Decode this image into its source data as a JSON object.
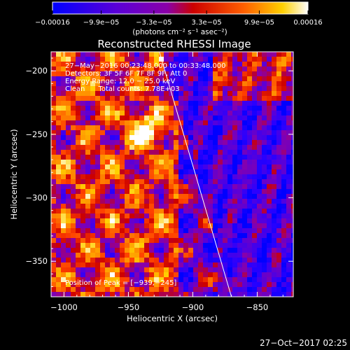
{
  "chart_data": {
    "type": "heatmap",
    "title": "Reconstructed RHESSI Image",
    "xlabel": "Heliocentric X (arcsec)",
    "ylabel": "Heliocentric Y (arcsec)",
    "xlim": [
      -1010,
      -822
    ],
    "ylim": [
      -378,
      -185
    ],
    "x_ticks": [
      -1000,
      -950,
      -900,
      -850
    ],
    "y_ticks": [
      -200,
      -250,
      -300,
      -350
    ],
    "x_tick_labels": [
      "−1000",
      "−950",
      "−900",
      "−850"
    ],
    "y_tick_labels": [
      "−200",
      "−250",
      "−300",
      "−350"
    ],
    "colorbar": {
      "range": [
        -0.00016,
        0.00016
      ],
      "ticks": [
        -0.00016,
        -9.9e-05,
        -3.3e-05,
        3.3e-05,
        9.9e-05,
        0.00016
      ],
      "tick_labels": [
        "−0.00016",
        "−9.9e−05",
        "−3.3e−05",
        "3.3e−05",
        "9.9e−05",
        "0.00016"
      ],
      "units": "(photons cm⁻² s⁻¹ asec⁻²)"
    },
    "annotations": {
      "time_range": "27−May−2016 00:23:48.000 to 00:33:48.000",
      "detectors": "Detectors: 3F 5F 6F 7F 8F 9F, Att 0",
      "energy": "Energy Range: 12.0 − 25.0 keV",
      "method": "Clean      Total counts: 7.78E+03",
      "peak": "Position of Peak = [−939,−245]"
    },
    "peak_position": [
      -939,
      -245
    ],
    "limb_line": [
      [
        -926,
        -185
      ],
      [
        -870,
        -378
      ]
    ],
    "grid": false,
    "footer": "27−Oct−2017 02:25",
    "colors": {
      "background": "#000000",
      "text": "#ffffff",
      "colormap": [
        "#0000ff",
        "#2a00ff",
        "#5a00d8",
        "#8a00a8",
        "#cc0000",
        "#ff4000",
        "#ff9000",
        "#ffd000",
        "#ffffff"
      ]
    }
  }
}
